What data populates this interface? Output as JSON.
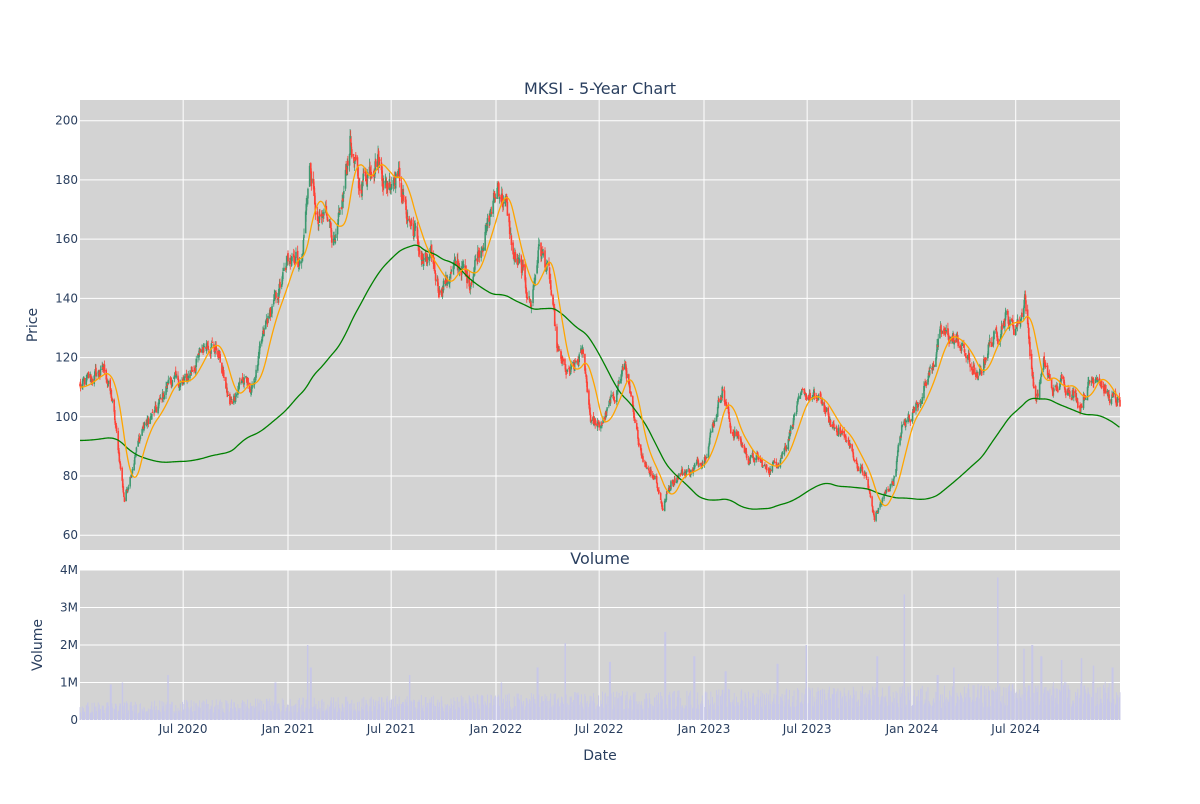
{
  "chart_data": {
    "type": "candlestick",
    "title": "MKSI - 5-Year Chart",
    "x_axis": {
      "label": "Date",
      "range": [
        "2020-01-02",
        "2024-12-31"
      ],
      "ticks": [
        {
          "date": "2020-07-01",
          "label": "Jul 2020"
        },
        {
          "date": "2021-01-01",
          "label": "Jan 2021"
        },
        {
          "date": "2021-07-01",
          "label": "Jul 2021"
        },
        {
          "date": "2022-01-01",
          "label": "Jan 2022"
        },
        {
          "date": "2022-07-01",
          "label": "Jul 2022"
        },
        {
          "date": "2023-01-01",
          "label": "Jan 2023"
        },
        {
          "date": "2023-07-01",
          "label": "Jul 2023"
        },
        {
          "date": "2024-01-01",
          "label": "Jan 2024"
        },
        {
          "date": "2024-07-01",
          "label": "Jul 2024"
        }
      ]
    },
    "price_panel": {
      "ylabel": "Price",
      "ylim": [
        55,
        207
      ],
      "yticks": [
        60,
        80,
        100,
        120,
        140,
        160,
        180,
        200
      ],
      "ytick_labels": [
        "60",
        "80",
        "100",
        "120",
        "140",
        "160",
        "180",
        "200"
      ],
      "close_anchors": [
        [
          "2020-01-02",
          110
        ],
        [
          "2020-01-20",
          113
        ],
        [
          "2020-02-15",
          116
        ],
        [
          "2020-02-28",
          105
        ],
        [
          "2020-03-20",
          72
        ],
        [
          "2020-04-01",
          82
        ],
        [
          "2020-04-20",
          96
        ],
        [
          "2020-05-15",
          102
        ],
        [
          "2020-06-08",
          113
        ],
        [
          "2020-07-01",
          111
        ],
        [
          "2020-07-20",
          117
        ],
        [
          "2020-08-12",
          126
        ],
        [
          "2020-08-31",
          122
        ],
        [
          "2020-09-21",
          104
        ],
        [
          "2020-10-12",
          113
        ],
        [
          "2020-10-30",
          109
        ],
        [
          "2020-11-23",
          131
        ],
        [
          "2020-12-15",
          142
        ],
        [
          "2021-01-07",
          156
        ],
        [
          "2021-01-25",
          152
        ],
        [
          "2021-02-08",
          185
        ],
        [
          "2021-02-22",
          164
        ],
        [
          "2021-03-12",
          170
        ],
        [
          "2021-03-25",
          157
        ],
        [
          "2021-04-08",
          174
        ],
        [
          "2021-04-20",
          194
        ],
        [
          "2021-05-05",
          178
        ],
        [
          "2021-05-21",
          183
        ],
        [
          "2021-06-07",
          188
        ],
        [
          "2021-06-22",
          178
        ],
        [
          "2021-07-12",
          184
        ],
        [
          "2021-07-26",
          170
        ],
        [
          "2021-08-12",
          162
        ],
        [
          "2021-08-26",
          152
        ],
        [
          "2021-09-10",
          153
        ],
        [
          "2021-09-24",
          143
        ],
        [
          "2021-10-12",
          148
        ],
        [
          "2021-10-29",
          152
        ],
        [
          "2021-11-15",
          145
        ],
        [
          "2021-12-01",
          156
        ],
        [
          "2021-12-15",
          163
        ],
        [
          "2022-01-04",
          178
        ],
        [
          "2022-01-18",
          172
        ],
        [
          "2022-02-01",
          154
        ],
        [
          "2022-02-16",
          149
        ],
        [
          "2022-03-03",
          138
        ],
        [
          "2022-03-18",
          158
        ],
        [
          "2022-04-04",
          148
        ],
        [
          "2022-04-19",
          122
        ],
        [
          "2022-05-06",
          114
        ],
        [
          "2022-05-20",
          117
        ],
        [
          "2022-06-03",
          122
        ],
        [
          "2022-06-16",
          100
        ],
        [
          "2022-07-01",
          96
        ],
        [
          "2022-07-18",
          103
        ],
        [
          "2022-08-02",
          110
        ],
        [
          "2022-08-16",
          118
        ],
        [
          "2022-09-01",
          97
        ],
        [
          "2022-09-20",
          84
        ],
        [
          "2022-10-07",
          80
        ],
        [
          "2022-10-21",
          69
        ],
        [
          "2022-11-04",
          78
        ],
        [
          "2022-11-21",
          81
        ],
        [
          "2022-12-12",
          82
        ],
        [
          "2023-01-03",
          87
        ],
        [
          "2023-01-18",
          98
        ],
        [
          "2023-02-02",
          110
        ],
        [
          "2023-02-17",
          96
        ],
        [
          "2023-03-03",
          93
        ],
        [
          "2023-03-20",
          86
        ],
        [
          "2023-04-05",
          86
        ],
        [
          "2023-04-21",
          82
        ],
        [
          "2023-05-10",
          85
        ],
        [
          "2023-05-24",
          90
        ],
        [
          "2023-06-09",
          101
        ],
        [
          "2023-06-26",
          108
        ],
        [
          "2023-07-14",
          106
        ],
        [
          "2023-07-28",
          105
        ],
        [
          "2023-08-11",
          97
        ],
        [
          "2023-08-25",
          96
        ],
        [
          "2023-09-12",
          91
        ],
        [
          "2023-09-27",
          84
        ],
        [
          "2023-10-12",
          80
        ],
        [
          "2023-10-27",
          66
        ],
        [
          "2023-11-13",
          73
        ],
        [
          "2023-11-30",
          79
        ],
        [
          "2023-12-14",
          96
        ],
        [
          "2024-01-03",
          102
        ],
        [
          "2024-01-19",
          108
        ],
        [
          "2024-02-05",
          117
        ],
        [
          "2024-02-21",
          128
        ],
        [
          "2024-03-08",
          127
        ],
        [
          "2024-03-27",
          124
        ],
        [
          "2024-04-12",
          118
        ],
        [
          "2024-04-26",
          112
        ],
        [
          "2024-05-14",
          124
        ],
        [
          "2024-05-30",
          128
        ],
        [
          "2024-06-13",
          134
        ],
        [
          "2024-06-28",
          130
        ],
        [
          "2024-07-11",
          134
        ],
        [
          "2024-07-17",
          142
        ],
        [
          "2024-07-25",
          124
        ],
        [
          "2024-08-05",
          105
        ],
        [
          "2024-08-20",
          118
        ],
        [
          "2024-09-06",
          108
        ],
        [
          "2024-09-20",
          112
        ],
        [
          "2024-10-07",
          109
        ],
        [
          "2024-10-22",
          104
        ],
        [
          "2024-11-06",
          111
        ],
        [
          "2024-11-21",
          115
        ],
        [
          "2024-12-06",
          108
        ],
        [
          "2024-12-31",
          104
        ]
      ],
      "ma_short_color": "#ffa500",
      "ma_long_color": "#008000",
      "up_color": "#3d9970",
      "down_color": "#ff4136"
    },
    "volume_panel": {
      "title": "Volume",
      "ylabel": "Volume",
      "ylim": [
        0,
        4000000
      ],
      "yticks": [
        0,
        1000000,
        2000000,
        3000000,
        4000000
      ],
      "ytick_labels": [
        "0",
        "1M",
        "2M",
        "3M",
        "4M"
      ],
      "bar_color": "#c7c7e8",
      "spikes": [
        [
          "2020-02-25",
          950000
        ],
        [
          "2020-03-16",
          1000000
        ],
        [
          "2020-06-05",
          1200000
        ],
        [
          "2020-12-10",
          1000000
        ],
        [
          "2021-02-05",
          2000000
        ],
        [
          "2021-02-10",
          1400000
        ],
        [
          "2021-08-02",
          1200000
        ],
        [
          "2022-01-10",
          1000000
        ],
        [
          "2022-03-15",
          1400000
        ],
        [
          "2022-05-02",
          2050000
        ],
        [
          "2022-07-20",
          1550000
        ],
        [
          "2022-10-25",
          2350000
        ],
        [
          "2022-12-15",
          1700000
        ],
        [
          "2023-02-08",
          1300000
        ],
        [
          "2023-05-10",
          1500000
        ],
        [
          "2023-06-30",
          2000000
        ],
        [
          "2023-11-01",
          1700000
        ],
        [
          "2023-12-18",
          3350000
        ],
        [
          "2024-02-15",
          1200000
        ],
        [
          "2024-03-15",
          1400000
        ],
        [
          "2024-05-31",
          3800000
        ],
        [
          "2024-07-15",
          1900000
        ],
        [
          "2024-07-30",
          2000000
        ],
        [
          "2024-08-15",
          1700000
        ],
        [
          "2024-09-20",
          1600000
        ],
        [
          "2024-10-25",
          1650000
        ],
        [
          "2024-11-15",
          1450000
        ],
        [
          "2024-12-18",
          1400000
        ]
      ]
    },
    "grid": true
  }
}
